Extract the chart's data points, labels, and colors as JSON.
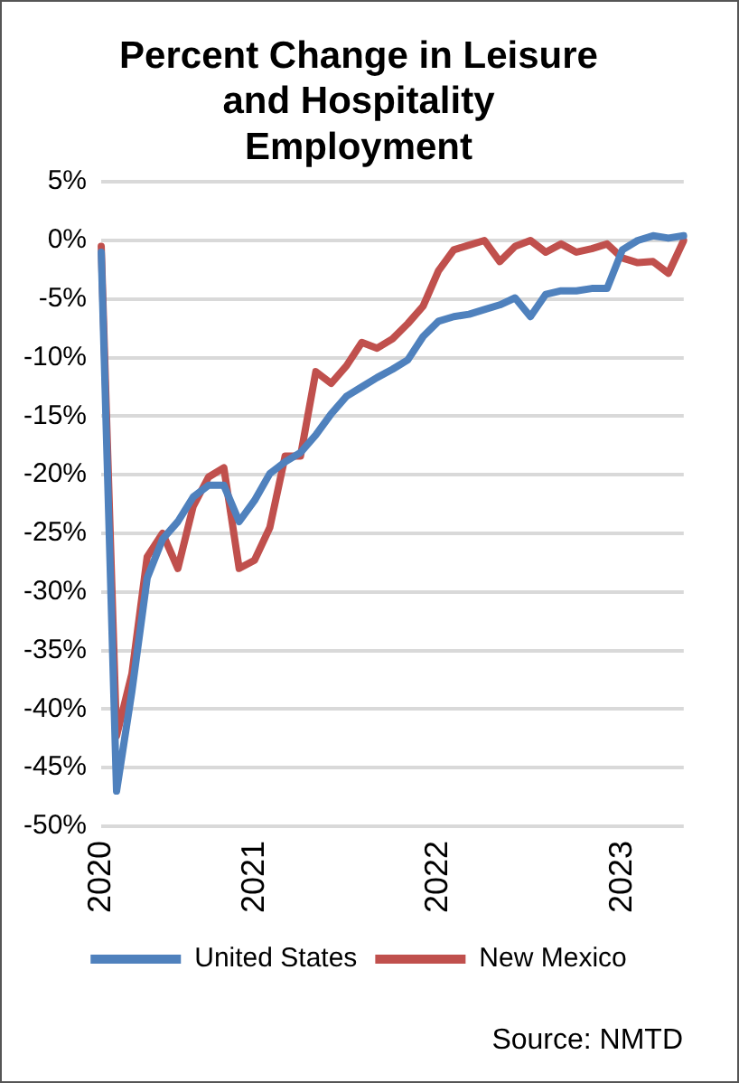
{
  "chart_data": {
    "type": "line",
    "title": "Percent Change in Leisure and Hospitality Employment",
    "categories": [
      "2020",
      null,
      null,
      null,
      null,
      null,
      null,
      null,
      null,
      null,
      "2021",
      null,
      null,
      null,
      null,
      null,
      null,
      null,
      null,
      null,
      null,
      null,
      "2022",
      null,
      null,
      null,
      null,
      null,
      null,
      null,
      null,
      null,
      null,
      null,
      "2023",
      null,
      null,
      null,
      null
    ],
    "series": [
      {
        "name": "United States",
        "color": "#4f81bd",
        "values": [
          -1,
          -47,
          -38.5,
          -28.8,
          -25.5,
          -24,
          -21.9,
          -20.9,
          -20.9,
          -24,
          -22.2,
          -19.9,
          -18.9,
          -18.1,
          -16.6,
          -14.8,
          -13.3,
          -12.5,
          -11.7,
          -11,
          -10.2,
          -8.2,
          -6.9,
          -6.5,
          -6.3,
          -5.9,
          -5.5,
          -4.9,
          -6.5,
          -4.6,
          -4.3,
          -4.3,
          -4.1,
          -4.1,
          -0.8,
          0,
          0.4,
          0.2,
          0.4
        ]
      },
      {
        "name": "New Mexico",
        "color": "#c0504d",
        "values": [
          -0.5,
          -42.3,
          -37,
          -27,
          -25,
          -28,
          -22.7,
          -20.2,
          -19.4,
          -28,
          -27.3,
          -24.5,
          -18.4,
          -18.4,
          -11.2,
          -12.2,
          -10.7,
          -8.7,
          -9.2,
          -8.4,
          -7.1,
          -5.6,
          -2.6,
          -0.8,
          -0.4,
          0,
          -1.8,
          -0.5,
          0,
          -1,
          -0.3,
          -1,
          -0.7,
          -0.3,
          -1.5,
          -1.9,
          -1.8,
          -2.8,
          0
        ]
      }
    ],
    "ylim": [
      -50,
      5
    ],
    "yticks": [
      {
        "value": 5,
        "label": "5%"
      },
      {
        "value": 0,
        "label": "0%"
      },
      {
        "value": -5,
        "label": "-5%"
      },
      {
        "value": -10,
        "label": "-10%"
      },
      {
        "value": -15,
        "label": "-15%"
      },
      {
        "value": -20,
        "label": "-20%"
      },
      {
        "value": -25,
        "label": "-25%"
      },
      {
        "value": -30,
        "label": "-30%"
      },
      {
        "value": -35,
        "label": "-35%"
      },
      {
        "value": -40,
        "label": "-40%"
      },
      {
        "value": -45,
        "label": "-45%"
      },
      {
        "value": -50,
        "label": "-50%"
      }
    ],
    "grid": "y",
    "legend": "bottom",
    "marker": "none",
    "line_style": "solid",
    "annotations": [
      "Source: NMTD"
    ]
  }
}
